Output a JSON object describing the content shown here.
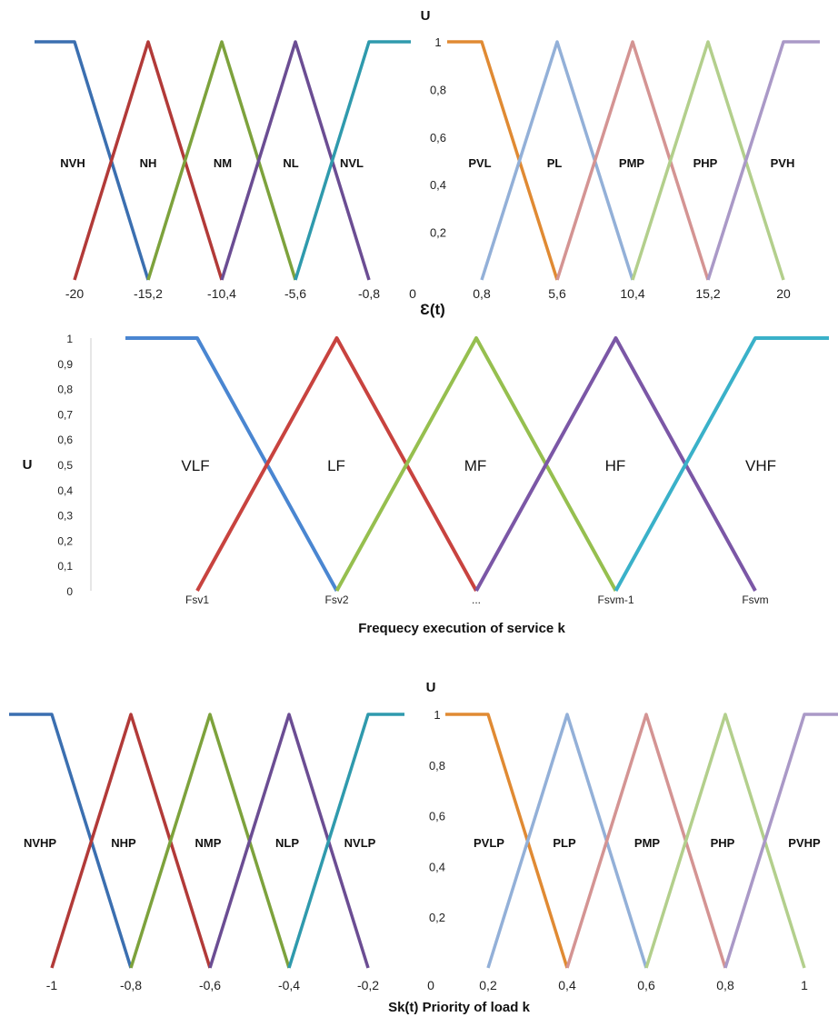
{
  "colors": {
    "neg": [
      "#3b6fb0",
      "#b23a38",
      "#7da23c",
      "#6b4d93",
      "#2f9aad"
    ],
    "pos": [
      "#e08a33",
      "#93b0d8",
      "#d49493",
      "#b3cf8c",
      "#aa99c7"
    ],
    "mid": [
      "#4a86d1",
      "#c8433f",
      "#96bf4f",
      "#7b57a6",
      "#3ab1c9"
    ]
  },
  "chart_data": [
    {
      "type": "line",
      "id": "error",
      "xlabel": "Ɛ(t)",
      "ylabel": "U",
      "ylim": [
        0,
        1
      ],
      "yticks": [
        "1",
        "0,8",
        "0,6",
        "0,4",
        "0,2"
      ],
      "neg_ticks": [
        "-20",
        "-15,2",
        "-10,4",
        "-5,6",
        "-0,8"
      ],
      "zero_tick": "0",
      "pos_ticks": [
        "0,8",
        "5,6",
        "10,4",
        "15,2",
        "20"
      ],
      "series": [
        {
          "name": "NVH",
          "x": [
            -22,
            -20,
            -15.2
          ],
          "y": [
            1,
            1,
            0
          ]
        },
        {
          "name": "NH",
          "x": [
            -20,
            -15.2,
            -10.4
          ],
          "y": [
            0,
            1,
            0
          ]
        },
        {
          "name": "NM",
          "x": [
            -15.2,
            -10.4,
            -5.6
          ],
          "y": [
            0,
            1,
            0
          ]
        },
        {
          "name": "NL",
          "x": [
            -10.4,
            -5.6,
            -0.8
          ],
          "y": [
            0,
            1,
            0
          ]
        },
        {
          "name": "NVL",
          "x": [
            -5.6,
            -0.8,
            0
          ],
          "y": [
            0,
            1,
            1
          ]
        },
        {
          "name": "PVL",
          "x": [
            0,
            0.8,
            5.6
          ],
          "y": [
            1,
            1,
            0
          ]
        },
        {
          "name": "PL",
          "x": [
            0.8,
            5.6,
            10.4
          ],
          "y": [
            0,
            1,
            0
          ]
        },
        {
          "name": "PMP",
          "x": [
            5.6,
            10.4,
            15.2
          ],
          "y": [
            0,
            1,
            0
          ]
        },
        {
          "name": "PHP",
          "x": [
            10.4,
            15.2,
            20
          ],
          "y": [
            0,
            1,
            0
          ]
        },
        {
          "name": "PVH",
          "x": [
            15.2,
            20,
            22
          ],
          "y": [
            0,
            1,
            1
          ]
        }
      ]
    },
    {
      "type": "line",
      "id": "frequency",
      "xlabel": "Frequecy execution of service k",
      "ylabel": "U",
      "ylim": [
        0,
        1
      ],
      "yticks": [
        "1",
        "0,9",
        "0,8",
        "0,7",
        "0,6",
        "0,5",
        "0,4",
        "0,3",
        "0,2",
        "0,1",
        "0"
      ],
      "categories": [
        "Fsv1",
        "Fsv2",
        "...",
        "Fsvm-1",
        "Fsvm"
      ],
      "series": [
        {
          "name": "VLF",
          "x": [
            -0.5,
            0,
            1
          ],
          "y": [
            1,
            1,
            0
          ]
        },
        {
          "name": "LF",
          "x": [
            0,
            1,
            2
          ],
          "y": [
            0,
            1,
            0
          ]
        },
        {
          "name": "MF",
          "x": [
            1,
            2,
            3
          ],
          "y": [
            0,
            1,
            0
          ]
        },
        {
          "name": "HF",
          "x": [
            2,
            3,
            4
          ],
          "y": [
            0,
            1,
            0
          ]
        },
        {
          "name": "VHF",
          "x": [
            3,
            4,
            4.5
          ],
          "y": [
            0,
            1,
            1
          ]
        }
      ]
    },
    {
      "type": "line",
      "id": "priority",
      "xlabel": "Sk(t)  Priority of load k",
      "ylabel": "U",
      "ylim": [
        0,
        1
      ],
      "yticks": [
        "1",
        "0,8",
        "0,6",
        "0,4",
        "0,2"
      ],
      "neg_ticks": [
        "-1",
        "-0,8",
        "-0,6",
        "-0,4",
        "-0,2"
      ],
      "zero_tick": "0",
      "pos_ticks": [
        "0,2",
        "0,4",
        "0,6",
        "0,8",
        "1"
      ],
      "series": [
        {
          "name": "NVHP",
          "x": [
            -1.1,
            -1,
            -0.8
          ],
          "y": [
            1,
            1,
            0
          ]
        },
        {
          "name": "NHP",
          "x": [
            -1,
            -0.8,
            -0.6
          ],
          "y": [
            0,
            1,
            0
          ]
        },
        {
          "name": "NMP",
          "x": [
            -0.8,
            -0.6,
            -0.4
          ],
          "y": [
            0,
            1,
            0
          ]
        },
        {
          "name": "NLP",
          "x": [
            -0.6,
            -0.4,
            -0.2
          ],
          "y": [
            0,
            1,
            0
          ]
        },
        {
          "name": "NVLP",
          "x": [
            -0.4,
            -0.2,
            0
          ],
          "y": [
            0,
            1,
            1
          ]
        },
        {
          "name": "PVLP",
          "x": [
            0,
            0.2,
            0.4
          ],
          "y": [
            1,
            1,
            0
          ]
        },
        {
          "name": "PLP",
          "x": [
            0.2,
            0.4,
            0.6
          ],
          "y": [
            0,
            1,
            0
          ]
        },
        {
          "name": "PMP",
          "x": [
            0.4,
            0.6,
            0.8
          ],
          "y": [
            0,
            1,
            0
          ]
        },
        {
          "name": "PHP",
          "x": [
            0.6,
            0.8,
            1
          ],
          "y": [
            0,
            1,
            0
          ]
        },
        {
          "name": "PVHP",
          "x": [
            0.8,
            1,
            1.1
          ],
          "y": [
            0,
            1,
            1
          ]
        }
      ]
    }
  ]
}
